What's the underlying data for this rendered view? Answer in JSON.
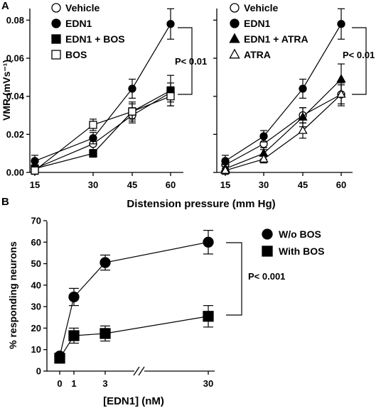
{
  "chart_data": [
    {
      "panel_label": "A",
      "type": "line",
      "x": [
        15,
        30,
        45,
        60
      ],
      "xlim": [
        11,
        64
      ],
      "ylim": [
        0,
        0.085
      ],
      "yticks": [
        "0.00",
        "0.02",
        "0.04",
        "0.06",
        "0.08"
      ],
      "ytick_values": [
        0,
        0.02,
        0.04,
        0.06,
        0.08
      ],
      "xticks": [
        "15",
        "30",
        "45",
        "60"
      ],
      "ylabel": "VMR (mVs⁻¹)",
      "series": [
        {
          "name": "Vehicle",
          "marker": "circle-open",
          "values": [
            0.002,
            0.015,
            0.03,
            0.042
          ],
          "err": [
            0.002,
            0.003,
            0.004,
            0.005
          ]
        },
        {
          "name": "EDN1",
          "marker": "circle-filled",
          "values": [
            0.006,
            0.018,
            0.044,
            0.078
          ],
          "err": [
            0.003,
            0.003,
            0.005,
            0.008
          ]
        },
        {
          "name": "EDN1 + BOS",
          "marker": "square-filled",
          "values": [
            0.002,
            0.01,
            0.032,
            0.043
          ],
          "err": [
            0.002,
            0.002,
            0.005,
            0.008
          ]
        },
        {
          "name": "BOS",
          "marker": "square-open",
          "values": [
            0.001,
            0.025,
            0.032,
            0.04
          ],
          "err": [
            0.002,
            0.003,
            0.004,
            0.005
          ]
        }
      ],
      "annotation": "P< 0.01"
    },
    {
      "type": "line",
      "x": [
        15,
        30,
        45,
        60
      ],
      "xlim": [
        11,
        64
      ],
      "ylim": [
        0,
        0.085
      ],
      "xticks": [
        "15",
        "30",
        "45",
        "60"
      ],
      "series": [
        {
          "name": "Vehicle",
          "marker": "circle-open",
          "values": [
            0.004,
            0.015,
            0.03,
            0.041
          ],
          "err": [
            0.002,
            0.003,
            0.004,
            0.005
          ]
        },
        {
          "name": "EDN1",
          "marker": "circle-filled",
          "values": [
            0.006,
            0.019,
            0.044,
            0.078
          ],
          "err": [
            0.003,
            0.003,
            0.005,
            0.008
          ]
        },
        {
          "name": "EDN1 + ATRA",
          "marker": "triangle-filled",
          "values": [
            0.002,
            0.01,
            0.029,
            0.049
          ],
          "err": [
            0.002,
            0.003,
            0.005,
            0.008
          ]
        },
        {
          "name": "ATRA",
          "marker": "triangle-open",
          "values": [
            0.001,
            0.007,
            0.022,
            0.041
          ],
          "err": [
            0.002,
            0.002,
            0.004,
            0.006
          ]
        }
      ],
      "annotation": "P< 0.01"
    },
    {
      "panel_label": "B",
      "type": "line",
      "x": [
        "0",
        "1",
        "3",
        "30"
      ],
      "xlabel": "[EDN1] (nM)",
      "ylabel": "% responding neurons",
      "ylim": [
        0,
        70
      ],
      "yticks": [
        "0",
        "10",
        "20",
        "30",
        "40",
        "50",
        "60",
        "70"
      ],
      "ytick_values": [
        0,
        10,
        20,
        30,
        40,
        50,
        60,
        70
      ],
      "axis_break": "between 3 and 30",
      "series": [
        {
          "name": "W/o BOS",
          "marker": "circle-filled",
          "values": [
            7,
            34.5,
            50.5,
            60
          ],
          "err": [
            1,
            4,
            3.5,
            5.5
          ]
        },
        {
          "name": "With BOS",
          "marker": "square-filled",
          "values": [
            6,
            16.5,
            17.5,
            25.5
          ],
          "err": [
            1,
            3.5,
            3.5,
            5
          ]
        }
      ],
      "annotation": "P< 0.001"
    }
  ],
  "panel_a_xlabel": "Distension pressure (mm Hg)"
}
